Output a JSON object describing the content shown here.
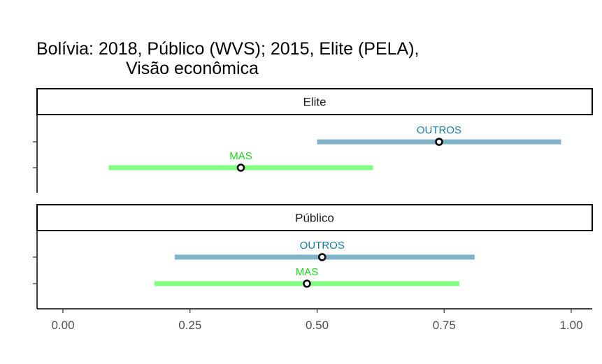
{
  "chart_data": {
    "type": "interval",
    "title": "Bolívia: 2018, Público (WVS); 2015, Elite (PELA),",
    "subtitle": "Visão econômica",
    "xlabel": "",
    "ylabel": "",
    "xlim": [
      0,
      1
    ],
    "x_ticks": [
      0.0,
      0.25,
      0.5,
      0.75,
      1.0
    ],
    "x_tick_labels": [
      "0.00",
      "0.25",
      "0.50",
      "0.75",
      "1.00"
    ],
    "grid": false,
    "colors": {
      "OUTROS": "#7fb3c9",
      "MAS": "#80ff80",
      "OUTROS_label": "#1a7aa0",
      "MAS_label": "#1ad81a"
    },
    "panels": [
      {
        "name": "Elite",
        "groups": [
          {
            "label": "OUTROS",
            "estimate": 0.74,
            "low": 0.5,
            "high": 0.98
          },
          {
            "label": "MAS",
            "estimate": 0.35,
            "low": 0.09,
            "high": 0.61
          }
        ]
      },
      {
        "name": "Público",
        "groups": [
          {
            "label": "OUTROS",
            "estimate": 0.51,
            "low": 0.22,
            "high": 0.81
          },
          {
            "label": "MAS",
            "estimate": 0.48,
            "low": 0.18,
            "high": 0.78
          }
        ]
      }
    ]
  }
}
